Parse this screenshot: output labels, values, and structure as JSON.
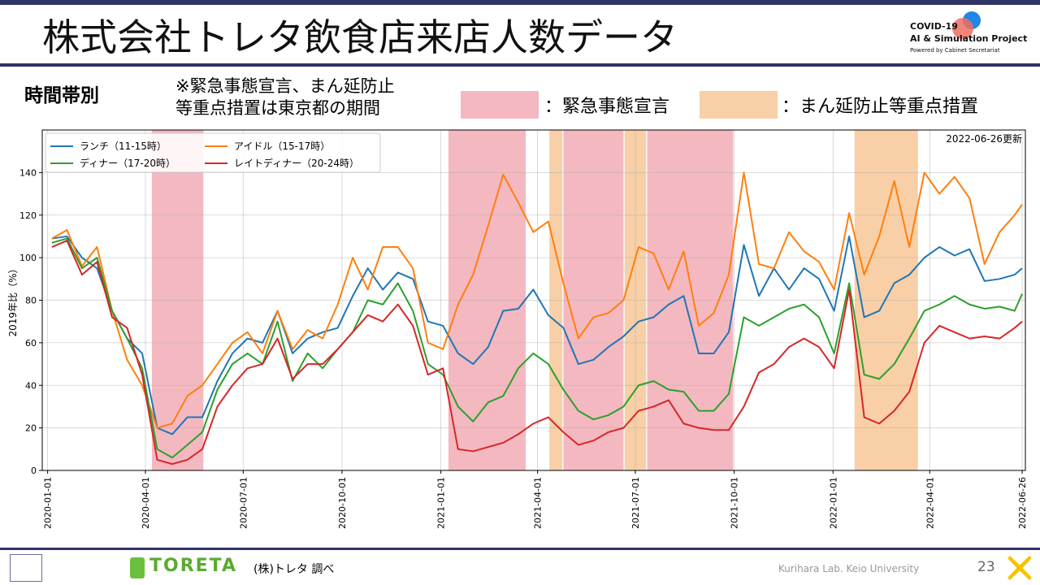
{
  "header": {
    "title": "株式会社トレタ飲食店来店人数データ",
    "logo": [
      "COVID-19",
      "AI & Simulation Project",
      "Powered by Cabinet Secretariat"
    ]
  },
  "subtitle": "時間帯別",
  "note": [
    "※緊急事態宣言、まん延防止",
    "等重点措置は東京都の期間"
  ],
  "footer": {
    "brand": "TORETA",
    "source": "(株)トレタ 調べ",
    "lab": "Kurihara Lab. Keio University",
    "page": "23"
  },
  "chart_data": {
    "type": "line",
    "annotation": "2022-06-26更新",
    "y_label": "2019年比（%）",
    "xlim": [
      "2019-12-27",
      "2022-06-29"
    ],
    "ylim": [
      0,
      160
    ],
    "xticks": [
      "2020-01-01",
      "2020-04-01",
      "2020-07-01",
      "2020-10-01",
      "2021-01-01",
      "2021-04-01",
      "2021-07-01",
      "2021-10-01",
      "2022-01-01",
      "2022-04-01",
      "2022-06-26"
    ],
    "yticks": [
      0,
      20,
      40,
      60,
      80,
      100,
      120,
      140
    ],
    "grid": true,
    "legend": "upper left",
    "periods": [
      {
        "label": "：緊急事態宣言",
        "color": "#f4b8c0",
        "ranges": [
          [
            "2020-04-07",
            "2020-05-25"
          ],
          [
            "2021-01-08",
            "2021-03-21"
          ],
          [
            "2021-04-25",
            "2021-06-20"
          ],
          [
            "2021-07-12",
            "2021-09-30"
          ]
        ]
      },
      {
        "label": "：まん延防止等重点措置",
        "color": "#f8cfa6",
        "ranges": [
          [
            "2021-04-12",
            "2021-04-24"
          ],
          [
            "2021-06-21",
            "2021-07-11"
          ],
          [
            "2022-01-21",
            "2022-03-21"
          ]
        ]
      }
    ],
    "x": [
      "2020-01-05",
      "2020-01-19",
      "2020-02-02",
      "2020-02-16",
      "2020-03-01",
      "2020-03-15",
      "2020-03-29",
      "2020-04-12",
      "2020-04-26",
      "2020-05-10",
      "2020-05-24",
      "2020-06-07",
      "2020-06-21",
      "2020-07-05",
      "2020-07-19",
      "2020-08-02",
      "2020-08-16",
      "2020-08-30",
      "2020-09-13",
      "2020-09-27",
      "2020-10-11",
      "2020-10-25",
      "2020-11-08",
      "2020-11-22",
      "2020-12-06",
      "2020-12-20",
      "2021-01-03",
      "2021-01-17",
      "2021-01-31",
      "2021-02-14",
      "2021-02-28",
      "2021-03-14",
      "2021-03-28",
      "2021-04-11",
      "2021-04-25",
      "2021-05-09",
      "2021-05-23",
      "2021-06-06",
      "2021-06-20",
      "2021-07-04",
      "2021-07-18",
      "2021-08-01",
      "2021-08-15",
      "2021-08-29",
      "2021-09-12",
      "2021-09-26",
      "2021-10-10",
      "2021-10-24",
      "2021-11-07",
      "2021-11-21",
      "2021-12-05",
      "2021-12-19",
      "2022-01-02",
      "2022-01-16",
      "2022-01-30",
      "2022-02-13",
      "2022-02-27",
      "2022-03-13",
      "2022-03-27",
      "2022-04-10",
      "2022-04-24",
      "2022-05-08",
      "2022-05-22",
      "2022-06-05",
      "2022-06-19",
      "2022-06-26"
    ],
    "series": [
      {
        "name": "ランチ（11-15時）",
        "color": "#1f77b4",
        "values": [
          109,
          110,
          100,
          95,
          75,
          62,
          55,
          20,
          17,
          25,
          25,
          42,
          55,
          62,
          60,
          75,
          55,
          62,
          65,
          67,
          82,
          95,
          85,
          93,
          90,
          70,
          68,
          55,
          50,
          58,
          75,
          76,
          85,
          73,
          67,
          50,
          52,
          58,
          63,
          70,
          72,
          78,
          82,
          55,
          55,
          65,
          106,
          82,
          95,
          85,
          95,
          90,
          75,
          110,
          72,
          75,
          88,
          92,
          100,
          105,
          101,
          104,
          89,
          90,
          92,
          95
        ]
      },
      {
        "name": "アイドル（15-17時）",
        "color": "#ff7f0e",
        "values": [
          109,
          113,
          96,
          105,
          75,
          52,
          40,
          20,
          22,
          35,
          40,
          50,
          60,
          65,
          55,
          75,
          57,
          66,
          62,
          78,
          100,
          85,
          105,
          105,
          95,
          60,
          57,
          78,
          92,
          115,
          139,
          126,
          112,
          117,
          88,
          62,
          72,
          74,
          80,
          105,
          102,
          85,
          103,
          68,
          74,
          92,
          140,
          97,
          95,
          112,
          103,
          98,
          85,
          121,
          92,
          110,
          136,
          105,
          140,
          130,
          138,
          128,
          97,
          112,
          120,
          125
        ]
      },
      {
        "name": "ディナー（17-20時）",
        "color": "#2ca02c",
        "values": [
          107,
          109,
          95,
          100,
          75,
          62,
          48,
          10,
          6,
          12,
          18,
          38,
          50,
          55,
          50,
          70,
          42,
          55,
          48,
          57,
          65,
          80,
          78,
          88,
          75,
          50,
          45,
          30,
          23,
          32,
          35,
          48,
          55,
          50,
          38,
          28,
          24,
          26,
          30,
          40,
          42,
          38,
          37,
          28,
          28,
          36,
          72,
          68,
          72,
          76,
          78,
          72,
          55,
          88,
          45,
          43,
          50,
          62,
          75,
          78,
          82,
          78,
          76,
          77,
          75,
          83
        ]
      },
      {
        "name": "レイトディナー（20-24時）",
        "color": "#d62728",
        "values": [
          105,
          108,
          92,
          98,
          72,
          67,
          45,
          5,
          3,
          5,
          10,
          30,
          40,
          48,
          50,
          62,
          43,
          50,
          50,
          57,
          65,
          73,
          70,
          78,
          68,
          45,
          48,
          10,
          9,
          11,
          13,
          17,
          22,
          25,
          18,
          12,
          14,
          18,
          20,
          28,
          30,
          33,
          22,
          20,
          19,
          19,
          30,
          46,
          50,
          58,
          62,
          58,
          48,
          85,
          25,
          22,
          28,
          37,
          60,
          68,
          65,
          62,
          63,
          62,
          67,
          70
        ]
      }
    ]
  }
}
